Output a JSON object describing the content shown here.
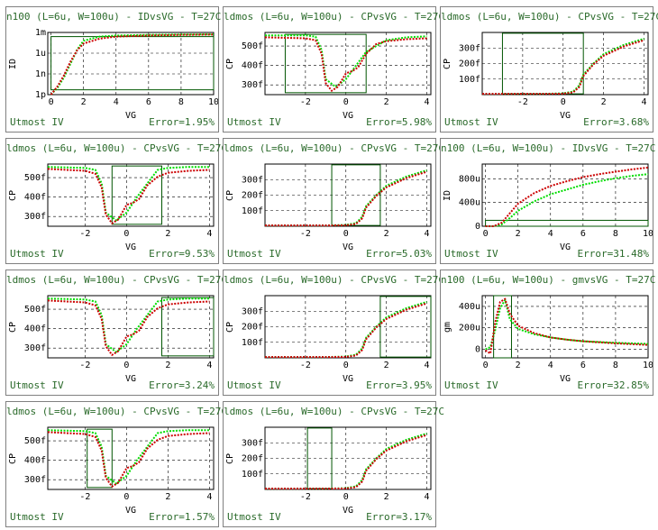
{
  "colors": {
    "frame": "#808080",
    "text": "#2a6a2a",
    "sim": "#00dd00",
    "meas": "#cc0000",
    "window": "#005500",
    "grid": "#000000"
  },
  "chart_data": [
    {
      "type": "line",
      "title": "n100 (L=6u, W=100u) - IDvsVG - T=27C",
      "xlabel": "VG",
      "ylabel": "ID",
      "xlim": [
        -0.2,
        10
      ],
      "xticks": [
        "0",
        "2",
        "4",
        "6",
        "8",
        "10"
      ],
      "yscale": "log",
      "yticks": [
        "1m",
        "1u",
        "1n",
        "1p"
      ],
      "ylim": [
        -12,
        -3
      ],
      "footer_left": "Utmost IV",
      "footer_right": "Error=1.95%",
      "window": {
        "x": [
          0,
          10
        ],
        "y": [
          -11.3,
          -3.6
        ]
      },
      "series": [
        {
          "name": "sim",
          "x": [
            0,
            0.4,
            0.8,
            1.2,
            1.6,
            2,
            3,
            4,
            6,
            8,
            10
          ],
          "y": [
            -12,
            -11,
            -9.5,
            -7.5,
            -5.5,
            -4.2,
            -3.6,
            -3.45,
            -3.35,
            -3.3,
            -3.28
          ]
        },
        {
          "name": "meas",
          "x": [
            0,
            0.4,
            0.8,
            1.2,
            1.6,
            2,
            3,
            4,
            6,
            8,
            10
          ],
          "y": [
            -12,
            -10.8,
            -9.2,
            -7.2,
            -5.6,
            -4.6,
            -3.9,
            -3.6,
            -3.45,
            -3.35,
            -3.3
          ]
        }
      ]
    },
    {
      "type": "line",
      "title": "ldmos (L=6u, W=100u) - CPvsVG - T=27C",
      "xlabel": "VG",
      "ylabel": "CP",
      "xlim": [
        -4,
        4.2
      ],
      "xticks": [
        "-2",
        "0",
        "2",
        "4"
      ],
      "ylim": [
        250,
        570
      ],
      "yticks": [
        "500f",
        "400f",
        "300f"
      ],
      "footer_left": "Utmost IV",
      "footer_right": "Error=5.98%",
      "window": {
        "x": [
          -3,
          1
        ],
        "y": [
          260,
          560
        ]
      },
      "series": [
        {
          "name": "sim",
          "x": [
            -4,
            -2,
            -1.5,
            -1.2,
            -1,
            -0.5,
            0,
            0.5,
            1,
            2,
            3,
            4
          ],
          "y": [
            555,
            555,
            548,
            480,
            330,
            290,
            330,
            400,
            470,
            530,
            545,
            550
          ]
        },
        {
          "name": "meas",
          "x": [
            -4,
            -2,
            -1.5,
            -1.2,
            -1,
            -0.7,
            -0.4,
            0,
            0.3,
            0.6,
            1,
            1.5,
            2,
            3,
            4
          ],
          "y": [
            545,
            540,
            530,
            460,
            310,
            270,
            290,
            360,
            370,
            390,
            460,
            510,
            525,
            535,
            540
          ]
        }
      ]
    },
    {
      "type": "line",
      "title": "ldmos (L=6u, W=100u) - CPvsVG - T=27C",
      "xlabel": "VG",
      "ylabel": "CP",
      "xlim": [
        -4,
        4.2
      ],
      "xticks": [
        "-2",
        "0",
        "2",
        "4"
      ],
      "ylim": [
        0,
        400
      ],
      "yticks": [
        "300f",
        "200f",
        "100f"
      ],
      "footer_left": "Utmost IV",
      "footer_right": "Error=3.68%",
      "window": {
        "x": [
          -3,
          1
        ],
        "y": [
          5,
          395
        ]
      },
      "series": [
        {
          "name": "sim",
          "x": [
            -4,
            -1,
            0,
            0.5,
            0.8,
            1,
            1.5,
            2,
            3,
            4
          ],
          "y": [
            5,
            5,
            8,
            20,
            60,
            130,
            200,
            260,
            320,
            360
          ]
        },
        {
          "name": "meas",
          "x": [
            -4,
            -1,
            0,
            0.5,
            0.8,
            1,
            1.5,
            2,
            3,
            4
          ],
          "y": [
            5,
            5,
            6,
            15,
            50,
            120,
            195,
            250,
            310,
            350
          ]
        }
      ]
    },
    {
      "type": "line",
      "title": "ldmos (L=6u, W=100u) - CPvsVG - T=27C",
      "xlabel": "VG",
      "ylabel": "CP",
      "xlim": [
        -3.8,
        4.2
      ],
      "xticks": [
        "-2",
        "0",
        "2",
        "4"
      ],
      "ylim": [
        250,
        570
      ],
      "yticks": [
        "500f",
        "400f",
        "300f"
      ],
      "footer_left": "Utmost IV",
      "footer_right": "Error=9.53%",
      "window": {
        "x": [
          -0.7,
          1.7
        ],
        "y": [
          260,
          560
        ]
      },
      "series": [
        {
          "name": "sim",
          "x": [
            -3.8,
            -2,
            -1.5,
            -1.2,
            -1,
            -0.5,
            0,
            0.5,
            1,
            1.5,
            2,
            3,
            4
          ],
          "y": [
            555,
            550,
            540,
            470,
            320,
            280,
            320,
            400,
            470,
            540,
            550,
            555,
            555
          ]
        },
        {
          "name": "meas",
          "x": [
            -3.8,
            -2,
            -1.5,
            -1.2,
            -1,
            -0.7,
            -0.4,
            0,
            0.3,
            0.6,
            1,
            1.5,
            2,
            3,
            4
          ],
          "y": [
            545,
            535,
            520,
            450,
            310,
            265,
            285,
            360,
            370,
            390,
            460,
            505,
            525,
            535,
            540
          ]
        }
      ]
    },
    {
      "type": "line",
      "title": "ldmos (L=6u, W=100u) - CPvsVG - T=27C",
      "xlabel": "VG",
      "ylabel": "CP",
      "xlim": [
        -4,
        4.2
      ],
      "xticks": [
        "-2",
        "0",
        "2",
        "4"
      ],
      "ylim": [
        0,
        400
      ],
      "yticks": [
        "300f",
        "200f",
        "100f"
      ],
      "footer_left": "Utmost IV",
      "footer_right": "Error=5.03%",
      "window": {
        "x": [
          -0.7,
          1.7
        ],
        "y": [
          5,
          395
        ]
      },
      "series": [
        {
          "name": "sim",
          "x": [
            -4,
            -1,
            0,
            0.5,
            0.8,
            1,
            1.5,
            2,
            3,
            4
          ],
          "y": [
            5,
            5,
            8,
            20,
            60,
            130,
            200,
            260,
            320,
            360
          ]
        },
        {
          "name": "meas",
          "x": [
            -4,
            -1,
            0,
            0.5,
            0.8,
            1,
            1.5,
            2,
            3,
            4
          ],
          "y": [
            5,
            5,
            6,
            15,
            50,
            120,
            195,
            250,
            310,
            350
          ]
        }
      ]
    },
    {
      "type": "line",
      "title": "n100 (L=6u, W=100u) - IDvsVG - T=27C",
      "xlabel": "VG",
      "ylabel": "ID",
      "xlim": [
        -0.2,
        10
      ],
      "xticks": [
        "0",
        "2",
        "4",
        "6",
        "8",
        "10"
      ],
      "ylim": [
        0,
        1050
      ],
      "yticks": [
        "800u",
        "400u",
        "0"
      ],
      "footer_left": "Utmost IV",
      "footer_right": "Error=31.48%",
      "window": {
        "x": [
          0,
          10
        ],
        "y": [
          0,
          100
        ]
      },
      "series": [
        {
          "name": "sim",
          "x": [
            0,
            0.5,
            1,
            1.5,
            2,
            3,
            4,
            5,
            6,
            7,
            8,
            9,
            10
          ],
          "y": [
            0,
            0,
            30,
            140,
            260,
            420,
            540,
            620,
            700,
            760,
            810,
            850,
            880
          ]
        },
        {
          "name": "meas",
          "x": [
            0,
            0.5,
            1,
            1.5,
            2,
            3,
            4,
            5,
            6,
            7,
            8,
            9,
            10
          ],
          "y": [
            0,
            0,
            60,
            220,
            380,
            560,
            680,
            760,
            830,
            880,
            920,
            960,
            990
          ]
        }
      ]
    },
    {
      "type": "line",
      "title": "ldmos (L=6u, W=100u) - CPvsVG - T=27C",
      "xlabel": "VG",
      "ylabel": "CP",
      "xlim": [
        -3.8,
        4.2
      ],
      "xticks": [
        "-2",
        "0",
        "2",
        "4"
      ],
      "ylim": [
        250,
        570
      ],
      "yticks": [
        "500f",
        "400f",
        "300f"
      ],
      "footer_left": "Utmost IV",
      "footer_right": "Error=3.24%",
      "window": {
        "x": [
          1.7,
          4.2
        ],
        "y": [
          260,
          560
        ]
      },
      "series": [
        {
          "name": "sim",
          "x": [
            -3.8,
            -2,
            -1.5,
            -1.2,
            -1,
            -0.5,
            0,
            0.5,
            1,
            1.5,
            2,
            3,
            4
          ],
          "y": [
            555,
            550,
            540,
            470,
            320,
            280,
            320,
            400,
            470,
            540,
            550,
            555,
            555
          ]
        },
        {
          "name": "meas",
          "x": [
            -3.8,
            -2,
            -1.5,
            -1.2,
            -1,
            -0.7,
            -0.4,
            0,
            0.3,
            0.6,
            1,
            1.5,
            2,
            3,
            4
          ],
          "y": [
            545,
            535,
            520,
            450,
            310,
            265,
            285,
            360,
            370,
            390,
            460,
            505,
            525,
            535,
            540
          ]
        }
      ]
    },
    {
      "type": "line",
      "title": "ldmos (L=6u, W=100u) - CPvsVG - T=27C",
      "xlabel": "VG",
      "ylabel": "CP",
      "xlim": [
        -4,
        4.2
      ],
      "xticks": [
        "-2",
        "0",
        "2",
        "4"
      ],
      "ylim": [
        0,
        400
      ],
      "yticks": [
        "300f",
        "200f",
        "100f"
      ],
      "footer_left": "Utmost IV",
      "footer_right": "Error=3.95%",
      "window": {
        "x": [
          1.7,
          4.2
        ],
        "y": [
          5,
          395
        ]
      },
      "series": [
        {
          "name": "sim",
          "x": [
            -4,
            -1,
            0,
            0.5,
            0.8,
            1,
            1.5,
            2,
            3,
            4
          ],
          "y": [
            5,
            5,
            8,
            20,
            60,
            130,
            200,
            260,
            320,
            360
          ]
        },
        {
          "name": "meas",
          "x": [
            -4,
            -1,
            0,
            0.5,
            0.8,
            1,
            1.5,
            2,
            3,
            4
          ],
          "y": [
            5,
            5,
            6,
            15,
            50,
            120,
            195,
            250,
            310,
            350
          ]
        }
      ]
    },
    {
      "type": "line",
      "title": "n100 (L=6u, W=100u) - gmvsVG - T=27C",
      "xlabel": "VG",
      "ylabel": "gm",
      "xlim": [
        -0.2,
        10
      ],
      "xticks": [
        "0",
        "2",
        "4",
        "6",
        "8",
        "10"
      ],
      "ylim": [
        -80,
        500
      ],
      "yticks": [
        "400u",
        "200u",
        "0"
      ],
      "footer_left": "Utmost IV",
      "footer_right": "Error=32.85%",
      "window": {
        "x": [
          0.5,
          1.6
        ],
        "y": [
          -80,
          500
        ]
      },
      "series": [
        {
          "name": "sim",
          "x": [
            0,
            0.3,
            0.6,
            0.9,
            1.2,
            1.5,
            2,
            3,
            4,
            5,
            6,
            8,
            10
          ],
          "y": [
            0,
            20,
            180,
            380,
            460,
            280,
            190,
            140,
            110,
            90,
            75,
            60,
            50
          ]
        },
        {
          "name": "meas",
          "x": [
            0,
            0.3,
            0.6,
            0.9,
            1.2,
            1.5,
            2,
            3,
            4,
            5,
            6,
            8,
            10
          ],
          "y": [
            -10,
            -40,
            250,
            440,
            470,
            330,
            220,
            150,
            110,
            90,
            75,
            55,
            40
          ]
        }
      ]
    },
    {
      "type": "line",
      "title": "ldmos (L=6u, W=100u) - CPvsVG - T=27C",
      "xlabel": "VG",
      "ylabel": "CP",
      "xlim": [
        -3.8,
        4.2
      ],
      "xticks": [
        "-2",
        "0",
        "2",
        "4"
      ],
      "ylim": [
        250,
        570
      ],
      "yticks": [
        "500f",
        "400f",
        "300f"
      ],
      "footer_left": "Utmost IV",
      "footer_right": "Error=1.57%",
      "window": {
        "x": [
          -1.9,
          -0.7
        ],
        "y": [
          260,
          560
        ]
      },
      "series": [
        {
          "name": "sim",
          "x": [
            -3.8,
            -2,
            -1.5,
            -1.2,
            -1,
            -0.5,
            0,
            0.5,
            1,
            1.5,
            2,
            3,
            4
          ],
          "y": [
            555,
            550,
            540,
            470,
            320,
            280,
            320,
            400,
            470,
            540,
            550,
            555,
            555
          ]
        },
        {
          "name": "meas",
          "x": [
            -3.8,
            -2,
            -1.5,
            -1.2,
            -1,
            -0.7,
            -0.4,
            0,
            0.3,
            0.6,
            1,
            1.5,
            2,
            3,
            4
          ],
          "y": [
            545,
            535,
            520,
            450,
            310,
            265,
            285,
            360,
            370,
            390,
            460,
            505,
            525,
            535,
            540
          ]
        }
      ]
    },
    {
      "type": "line",
      "title": "ldmos (L=6u, W=100u) - CPvsVG - T=27C",
      "xlabel": "VG",
      "ylabel": "CP",
      "xlim": [
        -4,
        4.2
      ],
      "xticks": [
        "-2",
        "0",
        "2",
        "4"
      ],
      "ylim": [
        0,
        400
      ],
      "yticks": [
        "300f",
        "200f",
        "100f"
      ],
      "footer_left": "Utmost IV",
      "footer_right": "Error=3.17%",
      "window": {
        "x": [
          -1.9,
          -0.7
        ],
        "y": [
          5,
          395
        ]
      },
      "series": [
        {
          "name": "sim",
          "x": [
            -4,
            -1,
            0,
            0.5,
            0.8,
            1,
            1.5,
            2,
            3,
            4
          ],
          "y": [
            5,
            5,
            8,
            20,
            60,
            130,
            200,
            260,
            320,
            360
          ]
        },
        {
          "name": "meas",
          "x": [
            -4,
            -1,
            0,
            0.5,
            0.8,
            1,
            1.5,
            2,
            3,
            4
          ],
          "y": [
            5,
            5,
            6,
            15,
            50,
            120,
            195,
            250,
            310,
            350
          ]
        }
      ]
    }
  ]
}
